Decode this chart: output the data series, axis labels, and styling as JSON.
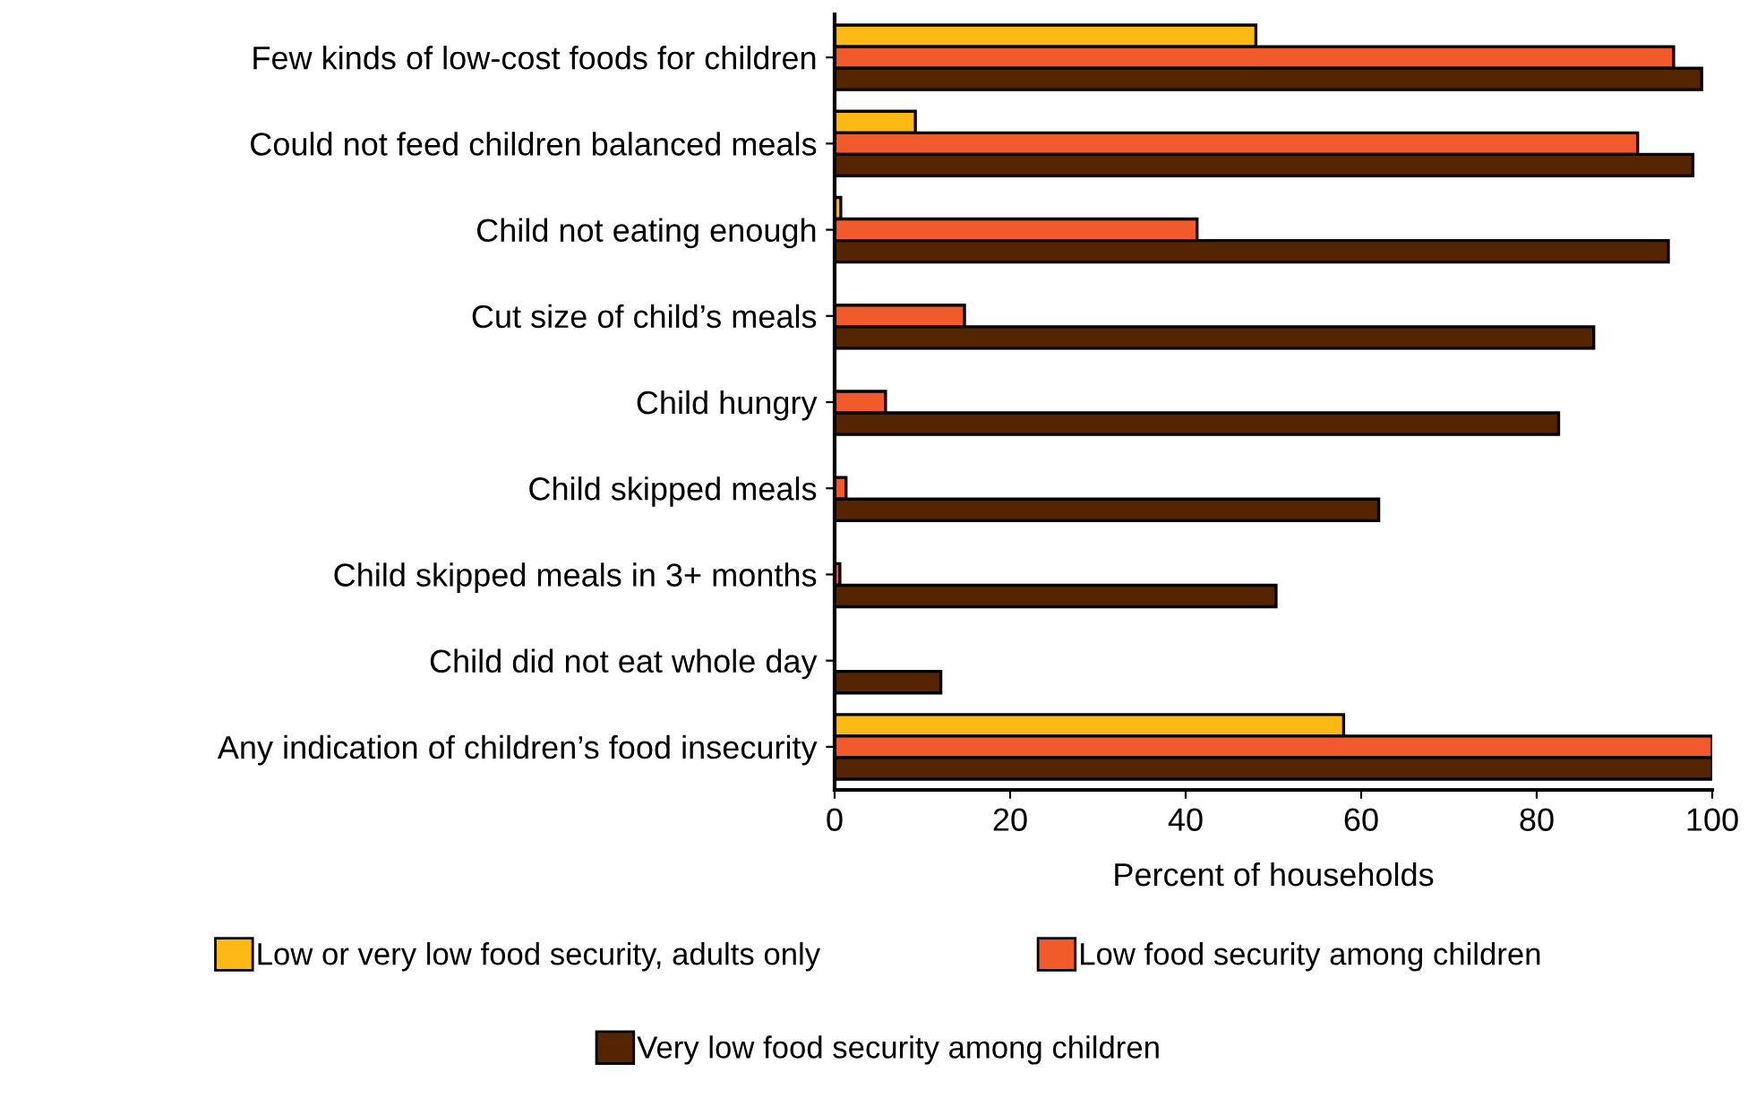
{
  "chart_data": {
    "type": "bar",
    "orientation": "horizontal",
    "xlabel": "Percent of households",
    "categories": [
      "Few kinds of low-cost foods for children",
      "Could not feed children balanced meals",
      "Child not eating enough",
      "Cut size of child’s meals",
      "Child hungry",
      "Child skipped meals",
      "Child skipped meals in 3+ months",
      "Child did not eat whole day",
      "Any indication of children’s food insecurity"
    ],
    "series": [
      {
        "name": "Low or very low food security, adults only",
        "color": "#fdb913",
        "values": [
          48,
          9.2,
          0.7,
          null,
          null,
          null,
          null,
          null,
          58
        ]
      },
      {
        "name": "Low food security among children",
        "color": "#f15a2b",
        "values": [
          95.6,
          91.5,
          41.3,
          14.8,
          5.8,
          1.3,
          0.6,
          null,
          100
        ]
      },
      {
        "name": "Very low food security among children",
        "color": "#552400",
        "values": [
          98.8,
          97.8,
          95,
          86.5,
          82.5,
          62,
          50.3,
          12.1,
          100
        ]
      }
    ],
    "xlim": [
      0,
      100
    ],
    "xticks": [
      0,
      20,
      40,
      60,
      80,
      100
    ],
    "grid": false,
    "legend": "bottom"
  }
}
